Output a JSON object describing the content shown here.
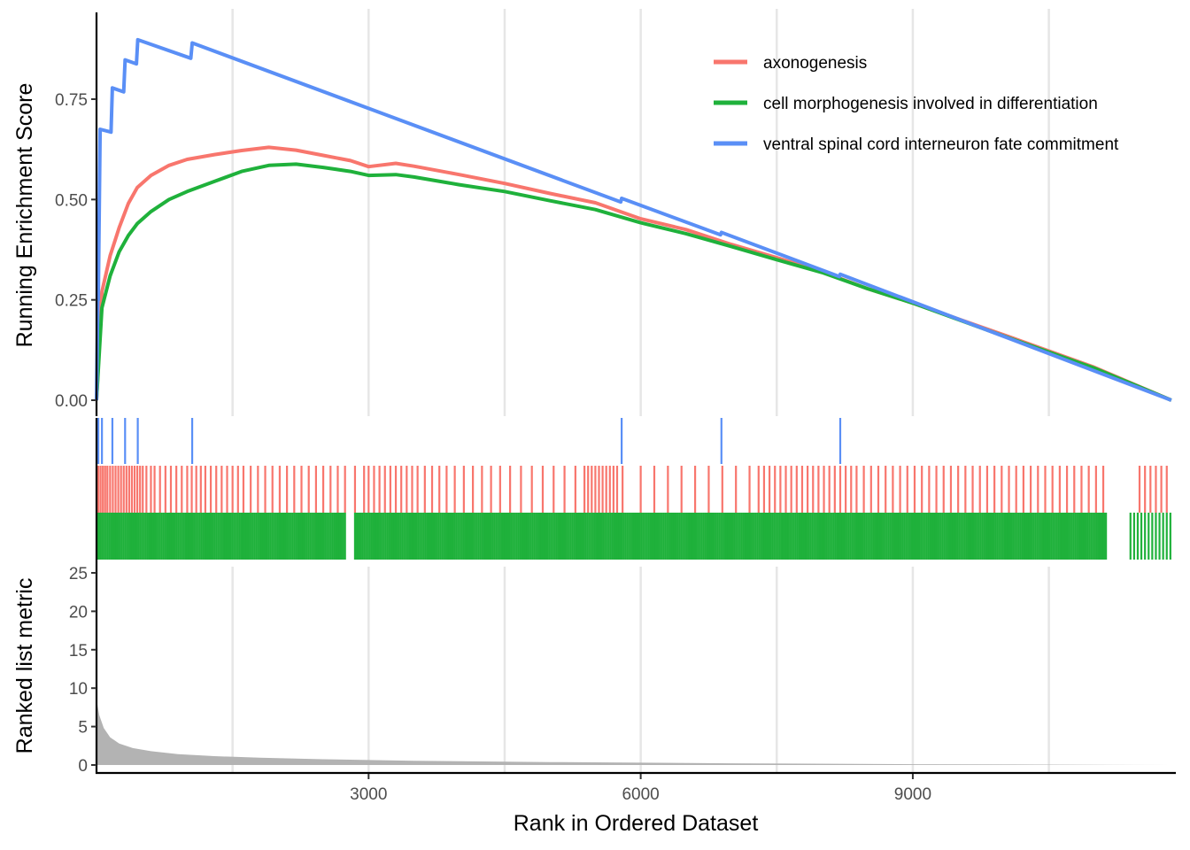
{
  "chart_data": {
    "type": "line",
    "xlabel": "Rank in Ordered Dataset",
    "x_ticks": [
      "3000",
      "6000",
      "9000"
    ],
    "x_tick_values": [
      3000,
      6000,
      9000
    ],
    "xlim": [
      0,
      11900
    ],
    "grid": "vertical",
    "legend_position": "top-right",
    "top_panel": {
      "ylabel": "Running Enrichment Score",
      "ylim": [
        0,
        0.9
      ],
      "y_ticks": [
        "0.00",
        "0.25",
        "0.50",
        "0.75"
      ],
      "y_tick_values": [
        0,
        0.25,
        0.5,
        0.75
      ]
    },
    "bottom_panel": {
      "ylabel": "Ranked list metric",
      "ylim": [
        0,
        25
      ],
      "y_ticks": [
        "0",
        "5",
        "10",
        "15",
        "20",
        "25"
      ],
      "y_tick_values": [
        0,
        5,
        10,
        15,
        20,
        25
      ],
      "metric_curve": [
        [
          0,
          8.5
        ],
        [
          30,
          6.5
        ],
        [
          80,
          4.8
        ],
        [
          150,
          3.6
        ],
        [
          250,
          2.8
        ],
        [
          400,
          2.2
        ],
        [
          600,
          1.8
        ],
        [
          900,
          1.4
        ],
        [
          1300,
          1.15
        ],
        [
          1800,
          0.95
        ],
        [
          2500,
          0.75
        ],
        [
          3500,
          0.55
        ],
        [
          5000,
          0.38
        ],
        [
          7000,
          0.22
        ],
        [
          9000,
          0.1
        ],
        [
          11000,
          0.03
        ],
        [
          11850,
          0.0
        ]
      ]
    },
    "series": [
      {
        "name": "axonogenesis",
        "color": "#f8766d",
        "points": [
          [
            0,
            0
          ],
          [
            60,
            0.27
          ],
          [
            150,
            0.36
          ],
          [
            250,
            0.43
          ],
          [
            350,
            0.49
          ],
          [
            450,
            0.53
          ],
          [
            600,
            0.56
          ],
          [
            800,
            0.585
          ],
          [
            1000,
            0.6
          ],
          [
            1300,
            0.612
          ],
          [
            1600,
            0.622
          ],
          [
            1900,
            0.63
          ],
          [
            2200,
            0.623
          ],
          [
            2500,
            0.61
          ],
          [
            2800,
            0.597
          ],
          [
            3000,
            0.582
          ],
          [
            3300,
            0.59
          ],
          [
            3500,
            0.583
          ],
          [
            4000,
            0.562
          ],
          [
            4500,
            0.54
          ],
          [
            5000,
            0.515
          ],
          [
            5500,
            0.492
          ],
          [
            6000,
            0.452
          ],
          [
            6500,
            0.425
          ],
          [
            7000,
            0.388
          ],
          [
            7500,
            0.355
          ],
          [
            8000,
            0.32
          ],
          [
            8500,
            0.278
          ],
          [
            9000,
            0.242
          ],
          [
            10000,
            0.163
          ],
          [
            11000,
            0.082
          ],
          [
            11850,
            0.0
          ]
        ],
        "hits": [
          5,
          20,
          45,
          70,
          95,
          120,
          150,
          180,
          210,
          240,
          270,
          300,
          330,
          360,
          390,
          420,
          450,
          480,
          510,
          550,
          600,
          640,
          700,
          760,
          820,
          880,
          940,
          1000,
          1050,
          1100,
          1150,
          1200,
          1260,
          1320,
          1380,
          1440,
          1500,
          1560,
          1620,
          1700,
          1780,
          1860,
          1940,
          2020,
          2100,
          2180,
          2260,
          2340,
          2420,
          2500,
          2580,
          2660,
          2740,
          2850,
          2950,
          3000,
          3060,
          3120,
          3180,
          3240,
          3300,
          3360,
          3420,
          3480,
          3540,
          3620,
          3700,
          3780,
          3860,
          3950,
          4050,
          4150,
          4250,
          4350,
          4450,
          4560,
          4680,
          4800,
          4920,
          5040,
          5160,
          5280,
          5380,
          5420,
          5460,
          5500,
          5540,
          5580,
          5620,
          5660,
          5700,
          5740,
          5800,
          6000,
          6150,
          6300,
          6450,
          6600,
          6750,
          6900,
          7050,
          7200,
          7300,
          7360,
          7420,
          7480,
          7540,
          7600,
          7660,
          7720,
          7780,
          7840,
          7900,
          7960,
          8020,
          8080,
          8140,
          8200,
          8260,
          8320,
          8380,
          8460,
          8540,
          8620,
          8700,
          8780,
          8860,
          8940,
          9020,
          9100,
          9180,
          9260,
          9340,
          9420,
          9500,
          9580,
          9660,
          9740,
          9820,
          9900,
          9980,
          10060,
          10140,
          10220,
          10300,
          10380,
          10460,
          10540,
          10620,
          10700,
          10780,
          10860,
          10940,
          11020,
          11100,
          11500,
          11560,
          11620,
          11680,
          11740,
          11800
        ]
      },
      {
        "name": "cell morphogenesis involved in differentiation",
        "color": "#1fb13b",
        "points": [
          [
            0,
            0
          ],
          [
            60,
            0.23
          ],
          [
            150,
            0.31
          ],
          [
            250,
            0.37
          ],
          [
            350,
            0.41
          ],
          [
            450,
            0.44
          ],
          [
            600,
            0.47
          ],
          [
            800,
            0.5
          ],
          [
            1000,
            0.52
          ],
          [
            1300,
            0.545
          ],
          [
            1600,
            0.57
          ],
          [
            1900,
            0.585
          ],
          [
            2200,
            0.588
          ],
          [
            2500,
            0.58
          ],
          [
            2800,
            0.57
          ],
          [
            3000,
            0.56
          ],
          [
            3300,
            0.562
          ],
          [
            3500,
            0.556
          ],
          [
            4000,
            0.537
          ],
          [
            4500,
            0.52
          ],
          [
            5000,
            0.497
          ],
          [
            5500,
            0.475
          ],
          [
            6000,
            0.442
          ],
          [
            6500,
            0.415
          ],
          [
            7000,
            0.383
          ],
          [
            7500,
            0.35
          ],
          [
            8000,
            0.318
          ],
          [
            8500,
            0.278
          ],
          [
            9000,
            0.242
          ],
          [
            10000,
            0.16
          ],
          [
            11000,
            0.08
          ],
          [
            11850,
            0.0
          ]
        ],
        "hits": [
          5,
          20,
          40,
          60,
          80,
          100,
          120,
          140,
          160,
          180,
          200,
          220,
          240,
          260,
          280,
          300,
          320,
          340,
          360,
          380,
          400,
          420,
          440,
          460,
          480,
          500,
          520,
          540,
          560,
          580,
          600,
          620,
          640,
          660,
          680,
          700,
          720,
          740,
          760,
          780,
          800,
          820,
          840,
          860,
          880,
          900,
          920,
          940,
          960,
          980,
          1000,
          1020,
          1040,
          1060,
          1080,
          1100,
          1120,
          1140,
          1160,
          1180,
          1200,
          1220,
          1240,
          1260,
          1280,
          1300,
          1320,
          1340,
          1360,
          1380,
          1400,
          1420,
          1440,
          1460,
          1480,
          1500,
          1520,
          1540,
          1560,
          1580,
          1600,
          1620,
          1640,
          1660,
          1680,
          1700,
          1720,
          1740,
          1760,
          1780,
          1800,
          1820,
          1840,
          1860,
          1880,
          1900,
          1920,
          1940,
          1960,
          1980,
          2000,
          2020,
          2040,
          2060,
          2080,
          2100,
          2120,
          2140,
          2160,
          2180,
          2200,
          2220,
          2240,
          2260,
          2280,
          2300,
          2320,
          2340,
          2360,
          2380,
          2400,
          2420,
          2440,
          2460,
          2480,
          2500,
          2520,
          2540,
          2560,
          2580,
          2600,
          2620,
          2640,
          2660,
          2680,
          2700,
          2720,
          2740,
          2850,
          2870,
          2890,
          2910,
          2930,
          2950,
          2970,
          2990,
          3010,
          3030,
          3050,
          3070,
          3090,
          3110,
          3130,
          3150,
          3170,
          3190,
          3210,
          3230,
          3250,
          3270,
          3290,
          3310,
          3330,
          3350,
          3370,
          3390,
          3410,
          3430,
          3450,
          3470,
          3490,
          3510,
          3530,
          3550,
          3570,
          3590,
          3610,
          3630,
          3650,
          3670,
          3690,
          3710,
          3730,
          3750,
          3770,
          3790,
          3810,
          3830,
          3850,
          3870,
          3890,
          3910,
          3930,
          3950,
          3970,
          3990,
          4010,
          4030,
          4050,
          4070,
          4090,
          4110,
          4130,
          4150,
          4170,
          4190,
          4210,
          4230,
          4250,
          4270,
          4290,
          4310,
          4330,
          4350,
          4370,
          4390,
          4410,
          4430,
          4450,
          4470,
          4490,
          4510,
          4530,
          4550,
          4570,
          4590,
          4610,
          4630,
          4650,
          4670,
          4690,
          4710,
          4730,
          4750,
          4770,
          4790,
          4810,
          4830,
          4850,
          4870,
          4890,
          4910,
          4930,
          4950,
          4970,
          4990,
          5010,
          5030,
          5050,
          5070,
          5090,
          5110,
          5130,
          5150,
          5170,
          5190,
          5210,
          5230,
          5250,
          5270,
          5290,
          5310,
          5330,
          5350,
          5370,
          5390,
          5410,
          5430,
          5450,
          5470,
          5490,
          5510,
          5530,
          5550,
          5570,
          5590,
          5610,
          5630,
          5650,
          5670,
          5690,
          5710,
          5730,
          5750,
          5770,
          5790,
          5810,
          5830,
          5850,
          5870,
          5890,
          5910,
          5930,
          5950,
          5970,
          5990,
          6010,
          6030,
          6050,
          6070,
          6090,
          6110,
          6130,
          6150,
          6170,
          6190,
          6210,
          6230,
          6250,
          6270,
          6290,
          6310,
          6330,
          6350,
          6370,
          6390,
          6410,
          6430,
          6450,
          6470,
          6490,
          6510,
          6530,
          6550,
          6570,
          6590,
          6610,
          6630,
          6650,
          6670,
          6690,
          6710,
          6730,
          6750,
          6770,
          6790,
          6810,
          6830,
          6850,
          6870,
          6890,
          6910,
          6930,
          6950,
          6970,
          6990,
          7010,
          7030,
          7050,
          7070,
          7090,
          7110,
          7130,
          7150,
          7170,
          7190,
          7210,
          7230,
          7250,
          7270,
          7290,
          7310,
          7330,
          7350,
          7370,
          7390,
          7410,
          7430,
          7450,
          7470,
          7490,
          7510,
          7530,
          7550,
          7570,
          7590,
          7610,
          7630,
          7650,
          7670,
          7690,
          7710,
          7730,
          7750,
          7770,
          7790,
          7810,
          7830,
          7850,
          7870,
          7890,
          7910,
          7930,
          7950,
          7970,
          7990,
          8010,
          8030,
          8050,
          8070,
          8090,
          8110,
          8130,
          8150,
          8170,
          8190,
          8210,
          8230,
          8250,
          8270,
          8290,
          8310,
          8330,
          8350,
          8370,
          8390,
          8410,
          8430,
          8450,
          8470,
          8490,
          8510,
          8530,
          8550,
          8570,
          8590,
          8610,
          8630,
          8650,
          8670,
          8690,
          8710,
          8730,
          8750,
          8770,
          8790,
          8810,
          8830,
          8850,
          8870,
          8890,
          8910,
          8930,
          8950,
          8970,
          8990,
          9010,
          9030,
          9050,
          9070,
          9090,
          9110,
          9130,
          9150,
          9170,
          9190,
          9210,
          9230,
          9250,
          9270,
          9290,
          9310,
          9330,
          9350,
          9370,
          9390,
          9410,
          9430,
          9450,
          9470,
          9490,
          9510,
          9530,
          9550,
          9570,
          9590,
          9610,
          9630,
          9650,
          9670,
          9690,
          9710,
          9730,
          9750,
          9770,
          9790,
          9810,
          9830,
          9850,
          9870,
          9890,
          9910,
          9930,
          9950,
          9970,
          9990,
          10010,
          10030,
          10050,
          10070,
          10090,
          10110,
          10130,
          10150,
          10170,
          10190,
          10210,
          10230,
          10250,
          10270,
          10290,
          10310,
          10330,
          10350,
          10370,
          10390,
          10410,
          10430,
          10450,
          10470,
          10490,
          10510,
          10530,
          10550,
          10570,
          10590,
          10610,
          10630,
          10650,
          10670,
          10690,
          10710,
          10730,
          10750,
          10770,
          10790,
          10810,
          10830,
          10850,
          10870,
          10890,
          10910,
          10930,
          10950,
          10970,
          10990,
          11010,
          11030,
          11050,
          11070,
          11090,
          11110,
          11130,
          11400,
          11440,
          11480,
          11520,
          11560,
          11600,
          11640,
          11680,
          11720,
          11760,
          11800,
          11840
        ]
      },
      {
        "name": "ventral spinal cord interneuron fate commitment",
        "color": "#5a8ff6",
        "points": [
          [
            0,
            0
          ],
          [
            15,
            0.25
          ],
          [
            20,
            0.25
          ],
          [
            40,
            0.675
          ],
          [
            160,
            0.668
          ],
          [
            175,
            0.778
          ],
          [
            300,
            0.768
          ],
          [
            315,
            0.848
          ],
          [
            440,
            0.838
          ],
          [
            455,
            0.898
          ],
          [
            1040,
            0.852
          ],
          [
            1055,
            0.89
          ],
          [
            5780,
            0.494
          ],
          [
            5790,
            0.503
          ],
          [
            6880,
            0.412
          ],
          [
            6890,
            0.418
          ],
          [
            8190,
            0.308
          ],
          [
            8200,
            0.314
          ],
          [
            11850,
            0.0
          ]
        ],
        "hits": [
          20,
          60,
          175,
          315,
          455,
          1055,
          5790,
          6890,
          8200
        ]
      }
    ]
  }
}
